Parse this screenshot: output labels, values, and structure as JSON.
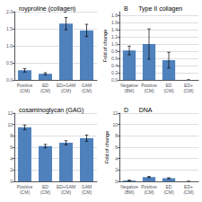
{
  "chart_data": [
    {
      "type": "bar",
      "title": "royproline (collagen)",
      "categories": [
        "Positive\n(CM)",
        "ED\n(CM)",
        "ED+GAM\n(CM)",
        "GAM\n(CM)"
      ],
      "values": [
        0.28,
        0.18,
        1.65,
        1.45
      ],
      "errors": [
        0.05,
        0.03,
        0.18,
        0.18
      ],
      "color": "#4f81bd",
      "ylim": [
        0,
        2.0
      ],
      "yticks": [
        {
          "value": 0.0,
          "label": "0.0"
        },
        {
          "value": 0.5,
          "label": "0.5"
        },
        {
          "value": 1.0,
          "label": "1.0"
        },
        {
          "value": 1.5,
          "label": "1.5"
        },
        {
          "value": 2.0,
          "label": "2.0"
        }
      ],
      "grid": true
    },
    {
      "type": "bar",
      "title": "B      Type II collagen",
      "ylabel": "Fold of change",
      "categories": [
        "Negative\n(BM)",
        "Positive\n(CM)",
        "ED\n(CM)",
        "ED+\n(CM)"
      ],
      "values": [
        0.82,
        1.0,
        0.55,
        0.0
      ],
      "errors": [
        0.12,
        0.42,
        0.22,
        0.0
      ],
      "color": "#4f81bd",
      "ylim": [
        0,
        1.9
      ],
      "yticks": [
        {
          "value": 0.0,
          "label": "0.0"
        },
        {
          "value": 0.2,
          "label": "0.2"
        },
        {
          "value": 0.4,
          "label": "0.4"
        },
        {
          "value": 0.6,
          "label": "0.6"
        },
        {
          "value": 0.8,
          "label": "0.8"
        },
        {
          "value": 1.0,
          "label": "1.0"
        },
        {
          "value": 1.2,
          "label": "1.2"
        },
        {
          "value": 1.4,
          "label": "1.4"
        },
        {
          "value": 1.6,
          "label": "1.6"
        },
        {
          "value": 1.8,
          "label": "1.8"
        }
      ],
      "grid": true
    },
    {
      "type": "bar",
      "title": "cosaminoglycan (GAG)",
      "categories": [
        "Positive\n(CM)",
        "ED\n(CM)",
        "ED+GAM\n(CM)",
        "GAM\n(CM)"
      ],
      "values": [
        9.5,
        6.2,
        6.8,
        7.6
      ],
      "errors": [
        0.4,
        0.3,
        0.35,
        0.55
      ],
      "color": "#4f81bd",
      "ylim": [
        0,
        12
      ],
      "yticks": [
        0,
        2,
        4,
        6,
        8,
        10,
        12
      ],
      "grid": true
    },
    {
      "type": "bar",
      "title": "D      DNA",
      "ylabel": "Fold of change",
      "categories": [
        "Negative\n(BM)",
        "Positive\n(CM)",
        "ED\n(CM)",
        "ED+\n(CM)"
      ],
      "values": [
        0.15,
        0.75,
        0.55,
        0.0
      ],
      "errors": [
        0.05,
        0.12,
        0.08,
        0.0
      ],
      "color": "#4f81bd",
      "ylim": [
        0,
        12
      ],
      "yticks": [
        0,
        2,
        4,
        6,
        8,
        10,
        12
      ],
      "grid": true
    }
  ]
}
